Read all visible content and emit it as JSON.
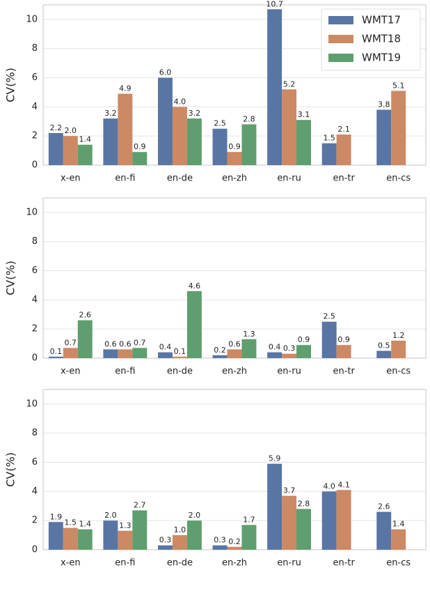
{
  "chart_data": [
    {
      "type": "bar",
      "y_label": "CV(%)",
      "categories": [
        "x-en",
        "en-fi",
        "en-de",
        "en-zh",
        "en-ru",
        "en-tr",
        "en-cs"
      ],
      "series": [
        {
          "name": "WMT17",
          "color": "#5875a4",
          "values": [
            2.2,
            3.2,
            6.0,
            2.5,
            10.7,
            1.5,
            3.8
          ],
          "value_labels": [
            "2.2",
            "3.2",
            "6.0",
            "2.5",
            "10.7",
            "1.5",
            "3.8"
          ]
        },
        {
          "name": "WMT18",
          "color": "#cc8963",
          "values": [
            2.0,
            4.9,
            4.0,
            0.9,
            5.2,
            2.1,
            5.1
          ],
          "value_labels": [
            "2.0",
            "4.9",
            "4.0",
            "0.9",
            "5.2",
            "2.1",
            "5.1"
          ]
        },
        {
          "name": "WMT19",
          "color": "#5f9e6e",
          "values": [
            1.4,
            0.9,
            3.2,
            2.8,
            3.1,
            null,
            null
          ],
          "value_labels": [
            "1.4",
            "0.9",
            "3.2",
            "2.8",
            "3.1",
            null,
            null
          ]
        }
      ],
      "ylim": [
        0,
        11
      ],
      "yticks": [
        0,
        2,
        4,
        6,
        8,
        10
      ],
      "grid": true,
      "legend": "upper right"
    },
    {
      "type": "bar",
      "y_label": "CV(%)",
      "categories": [
        "x-en",
        "en-fi",
        "en-de",
        "en-zh",
        "en-ru",
        "en-tr",
        "en-cs"
      ],
      "series": [
        {
          "name": "WMT17",
          "color": "#5875a4",
          "values": [
            0.1,
            0.6,
            0.4,
            0.2,
            0.4,
            2.5,
            0.5
          ]
        },
        {
          "name": "WMT18",
          "color": "#cc8963",
          "values": [
            0.7,
            0.6,
            0.1,
            0.6,
            0.3,
            0.9,
            1.2
          ]
        },
        {
          "name": "WMT19",
          "color": "#5f9e6e",
          "values": [
            2.6,
            0.7,
            4.6,
            1.3,
            0.9,
            null,
            null
          ]
        }
      ],
      "ylim": [
        0,
        11
      ],
      "yticks": [
        0,
        2,
        4,
        6,
        8,
        10
      ],
      "grid": true
    },
    {
      "type": "bar",
      "y_label": "CV(%)",
      "categories": [
        "x-en",
        "en-fi",
        "en-de",
        "en-zh",
        "en-ru",
        "en-tr",
        "en-cs"
      ],
      "series": [
        {
          "name": "WMT17",
          "color": "#5875a4",
          "values": [
            1.9,
            2.0,
            0.3,
            0.3,
            5.9,
            4.0,
            2.6
          ],
          "value_labels": [
            "1.9",
            "2.0",
            "0.3",
            "0.3",
            "5.9",
            "4.0",
            "2.6"
          ]
        },
        {
          "name": "WMT18",
          "color": "#cc8963",
          "values": [
            1.5,
            1.3,
            1.0,
            0.2,
            3.7,
            4.1,
            1.4
          ],
          "value_labels": [
            "1.5",
            "1.3",
            "1.0",
            "0.2",
            "3.7",
            "4.1",
            "1.4"
          ]
        },
        {
          "name": "WMT19",
          "color": "#5f9e6e",
          "values": [
            1.4,
            2.7,
            2.0,
            1.7,
            2.8,
            null,
            null
          ],
          "value_labels": [
            "1.4",
            "2.7",
            "2.0",
            "1.7",
            "2.8",
            null,
            null
          ]
        }
      ],
      "ylim": [
        0,
        11
      ],
      "yticks": [
        0,
        2,
        4,
        6,
        8,
        10
      ],
      "grid": true
    }
  ]
}
